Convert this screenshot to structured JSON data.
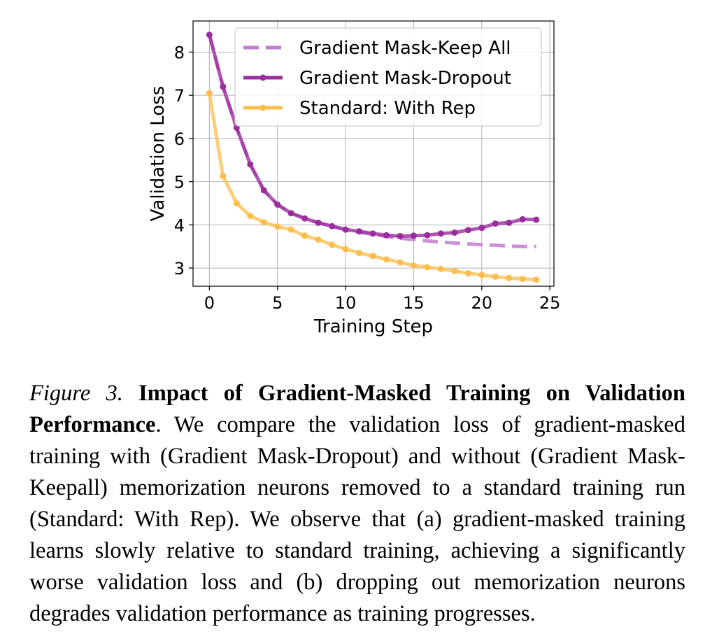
{
  "chart_data": {
    "type": "line",
    "title": "",
    "xlabel": "Training Step",
    "ylabel": "Validation Loss",
    "xlim": [
      -1.2,
      25.3
    ],
    "ylim": [
      2.58,
      8.72
    ],
    "xticks": [
      0,
      5,
      10,
      15,
      20,
      25
    ],
    "yticks": [
      3,
      4,
      5,
      6,
      7,
      8
    ],
    "grid": true,
    "legend_position": "top-right",
    "series": [
      {
        "name": "Gradient Mask-Keep All",
        "style": "dashed",
        "markers": false,
        "color": "#c27ccf",
        "x": [
          0,
          1,
          2,
          3,
          4,
          5,
          6,
          7,
          8,
          9,
          10,
          11,
          12,
          13,
          14,
          15,
          16,
          17,
          18,
          19,
          20,
          21,
          22,
          23,
          24
        ],
        "y": [
          8.4,
          7.2,
          6.25,
          5.4,
          4.8,
          4.47,
          4.27,
          4.15,
          4.05,
          3.97,
          3.89,
          3.83,
          3.78,
          3.73,
          3.69,
          3.66,
          3.63,
          3.6,
          3.58,
          3.56,
          3.54,
          3.53,
          3.51,
          3.5,
          3.5
        ]
      },
      {
        "name": "Gradient Mask-Dropout",
        "style": "solid",
        "markers": true,
        "color": "#9b2c9e",
        "x": [
          0,
          1,
          2,
          3,
          4,
          5,
          6,
          7,
          8,
          9,
          10,
          11,
          12,
          13,
          14,
          15,
          16,
          17,
          18,
          19,
          20,
          21,
          22,
          23,
          24
        ],
        "y": [
          8.4,
          7.2,
          6.25,
          5.4,
          4.8,
          4.47,
          4.27,
          4.15,
          4.05,
          3.97,
          3.89,
          3.85,
          3.8,
          3.76,
          3.74,
          3.75,
          3.76,
          3.8,
          3.82,
          3.88,
          3.93,
          4.03,
          4.05,
          4.13,
          4.12
        ]
      },
      {
        "name": "Standard: With Rep",
        "style": "solid",
        "markers": true,
        "color": "#fbbd4e",
        "x": [
          0,
          1,
          2,
          3,
          4,
          5,
          6,
          7,
          8,
          9,
          10,
          11,
          12,
          13,
          14,
          15,
          16,
          17,
          18,
          19,
          20,
          21,
          22,
          23,
          24
        ],
        "y": [
          7.05,
          5.13,
          4.5,
          4.21,
          4.06,
          3.96,
          3.89,
          3.75,
          3.66,
          3.54,
          3.44,
          3.35,
          3.28,
          3.2,
          3.13,
          3.06,
          3.02,
          2.98,
          2.93,
          2.88,
          2.84,
          2.8,
          2.77,
          2.75,
          2.73
        ]
      }
    ]
  },
  "caption": {
    "label": "Figure 3.",
    "title": "Impact of Gradient-Masked Training on Validation Performance",
    "body": ". We compare the validation loss of gradient-masked training with (Gradient Mask-Dropout) and without (Gradient Mask-Keepall) memorization neurons removed to a standard training run (Standard: With Rep). We observe that (a) gradient-masked training learns slowly relative to standard training, achieving a significantly worse validation loss and (b) dropping out memorization neurons degrades validation performance as training progresses."
  }
}
